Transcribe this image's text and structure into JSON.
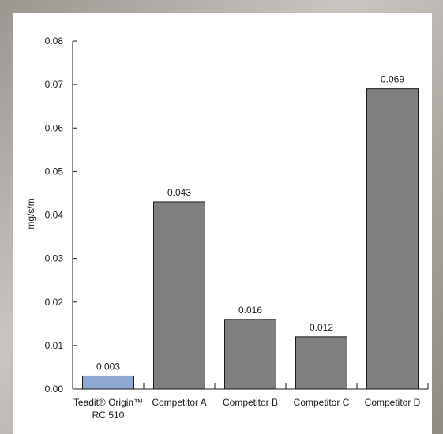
{
  "chart_data": {
    "type": "bar",
    "title": "",
    "xlabel": "",
    "ylabel": "mg/s/m",
    "ylim": [
      0,
      0.08
    ],
    "yticks": [
      "0.00",
      "0.01",
      "0.02",
      "0.03",
      "0.04",
      "0.05",
      "0.06",
      "0.07",
      "0.08"
    ],
    "categories": [
      [
        "Teadit® Origin™",
        "RC 510"
      ],
      [
        "Competitor A"
      ],
      [
        "Competitor B"
      ],
      [
        "Competitor C"
      ],
      [
        "Competitor D"
      ]
    ],
    "values": [
      0.003,
      0.043,
      0.016,
      0.012,
      0.069
    ],
    "value_labels": [
      "0.003",
      "0.043",
      "0.016",
      "0.012",
      "0.069"
    ],
    "colors": [
      "#8fa8d1",
      "#7f7f81",
      "#7f7f81",
      "#7f7f81",
      "#7f7f81"
    ],
    "grid": false,
    "legend": "none"
  },
  "colors": {
    "axis": "#1a1a1a",
    "bar_border": "#1a1a1a",
    "background": "#ffffff"
  }
}
